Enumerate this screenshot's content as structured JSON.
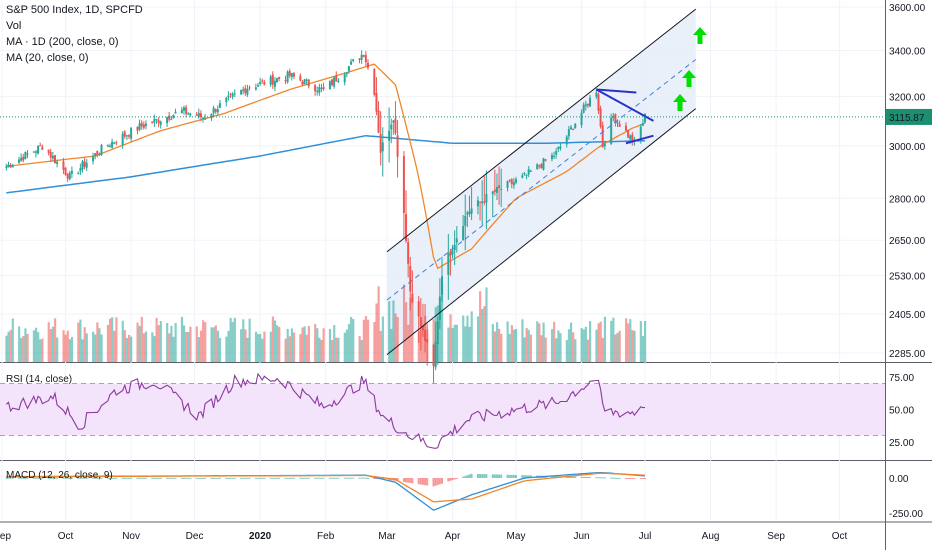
{
  "header": {
    "title": "S&P 500 Index, 1D, SPCFD",
    "vol_label": "Vol",
    "ma200_label": "MA · 1D (200, close, 0)",
    "ma20_label": "MA (20, close, 0)"
  },
  "colors": {
    "up": "#26a69a",
    "down": "#ef5350",
    "ma20": "#f0862c",
    "ma200": "#2f8fd8",
    "channel_fill": "#e3ecf9",
    "triangle": "#2a31c9",
    "arrow": "#00dd00",
    "rsi": "#8c3a9e",
    "rsi_band": "#f3e3fb",
    "macd_line": "#2f8fd8",
    "signal_line": "#f0862c",
    "price_label_bg": "#1b8f6f"
  },
  "chart_data": [
    {
      "type": "candlestick",
      "title": "S&P 500 Index, 1D, SPCFD",
      "x_ticks": [
        "Sep",
        "Oct",
        "Nov",
        "Dec",
        "2020",
        "Feb",
        "Mar",
        "Apr",
        "May",
        "Jun",
        "Jul",
        "Aug",
        "Sep",
        "Oct"
      ],
      "x_tick_dates": [
        "2019-09-01",
        "2019-10-01",
        "2019-11-01",
        "2019-12-01",
        "2020-01-01",
        "2020-02-01",
        "2020-03-01",
        "2020-04-01",
        "2020-05-01",
        "2020-06-01",
        "2020-07-01",
        "2020-08-01",
        "2020-09-01",
        "2020-10-01"
      ],
      "y_ticks": [
        3600,
        3400,
        3200,
        3000,
        2800,
        2650,
        2530,
        2405,
        2285
      ],
      "y_tick_labels": [
        "3600.00",
        "3400.00",
        "3200.00",
        "3000.00",
        "2800.00",
        "2650.00",
        "2530.00",
        "2405.00",
        "2285.00"
      ],
      "y_scale": "log",
      "last_price": 3115.87,
      "last_price_label": "3115.87",
      "close_series": {
        "dates": [
          "2019-09-03",
          "2019-09-20",
          "2019-10-03",
          "2019-10-20",
          "2019-11-05",
          "2019-11-25",
          "2019-12-05",
          "2019-12-26",
          "2020-01-15",
          "2020-01-31",
          "2020-02-19",
          "2020-02-24",
          "2020-02-27",
          "2020-03-04",
          "2020-03-09",
          "2020-03-12",
          "2020-03-16",
          "2020-03-23",
          "2020-03-27",
          "2020-04-08",
          "2020-04-20",
          "2020-05-05",
          "2020-05-20",
          "2020-06-08",
          "2020-06-11",
          "2020-06-16",
          "2020-06-26",
          "2020-07-01"
        ],
        "values": [
          2920,
          3000,
          2880,
          3000,
          3075,
          3140,
          3115,
          3240,
          3290,
          3225,
          3390,
          3225,
          2980,
          3120,
          2750,
          2480,
          2390,
          2240,
          2540,
          2750,
          2820,
          2880,
          2970,
          3230,
          3000,
          3120,
          3010,
          3115
        ]
      },
      "ma20": {
        "dates": [
          "2019-09-03",
          "2019-10-15",
          "2019-11-15",
          "2019-12-15",
          "2020-01-15",
          "2020-02-10",
          "2020-02-24",
          "2020-03-05",
          "2020-03-16",
          "2020-03-24",
          "2020-04-10",
          "2020-05-01",
          "2020-05-25",
          "2020-06-10",
          "2020-06-25",
          "2020-07-01"
        ],
        "values": [
          2920,
          2960,
          3060,
          3130,
          3230,
          3300,
          3340,
          3250,
          2880,
          2550,
          2620,
          2800,
          2900,
          3000,
          3070,
          3090
        ]
      },
      "ma200": {
        "dates": [
          "2019-09-03",
          "2019-11-01",
          "2020-01-01",
          "2020-02-20",
          "2020-04-01",
          "2020-05-15",
          "2020-07-01"
        ],
        "values": [
          2820,
          2880,
          2960,
          3040,
          3010,
          3010,
          3020
        ]
      },
      "annotations": {
        "channel": {
          "start_date": "2020-03-01",
          "end_date": "2020-07-25",
          "upper_start": 2610,
          "upper_end": 3590,
          "mid_start": 2450,
          "mid_end": 3360,
          "lower_start": 2280,
          "lower_end": 3150
        },
        "triangle_upper": [
          [
            "2020-06-08",
            3230
          ],
          [
            "2020-07-05",
            3100
          ]
        ],
        "triangle_lower": [
          [
            "2020-06-22",
            3010
          ],
          [
            "2020-07-05",
            3040
          ]
        ],
        "arrows": [
          "up-arrow",
          "up-arrow",
          "up-arrow"
        ]
      },
      "volume_bars": 210
    },
    {
      "type": "line",
      "title": "RSI (14, close)",
      "y_ticks": [
        75,
        50,
        25
      ],
      "y_tick_labels": [
        "75.00",
        "50.00",
        "25.00"
      ],
      "band": [
        30,
        70
      ],
      "dates": [
        "2019-09-03",
        "2019-09-25",
        "2019-10-08",
        "2019-10-25",
        "2019-11-12",
        "2019-12-03",
        "2019-12-20",
        "2020-01-10",
        "2020-01-31",
        "2020-02-19",
        "2020-02-28",
        "2020-03-12",
        "2020-03-23",
        "2020-04-08",
        "2020-05-01",
        "2020-05-20",
        "2020-06-08",
        "2020-06-12",
        "2020-06-26",
        "2020-07-01"
      ],
      "values": [
        52,
        60,
        38,
        65,
        72,
        45,
        72,
        74,
        52,
        72,
        44,
        30,
        22,
        42,
        50,
        55,
        74,
        48,
        48,
        55
      ]
    },
    {
      "type": "bar+line",
      "title": "MACD (12, 26, close, 9)",
      "y_ticks": [
        0,
        -250
      ],
      "y_tick_labels": [
        "0.00",
        "-250.00"
      ],
      "macd": {
        "dates": [
          "2019-09-03",
          "2019-12-01",
          "2020-02-20",
          "2020-03-05",
          "2020-03-23",
          "2020-04-10",
          "2020-05-05",
          "2020-06-10",
          "2020-07-01"
        ],
        "values": [
          10,
          15,
          20,
          -30,
          -230,
          -120,
          0,
          40,
          15
        ]
      },
      "signal": {
        "dates": [
          "2019-09-03",
          "2019-12-01",
          "2020-02-20",
          "2020-03-05",
          "2020-03-23",
          "2020-04-10",
          "2020-05-05",
          "2020-06-10",
          "2020-07-01"
        ],
        "values": [
          8,
          14,
          18,
          -10,
          -170,
          -150,
          -20,
          35,
          20
        ]
      }
    }
  ]
}
